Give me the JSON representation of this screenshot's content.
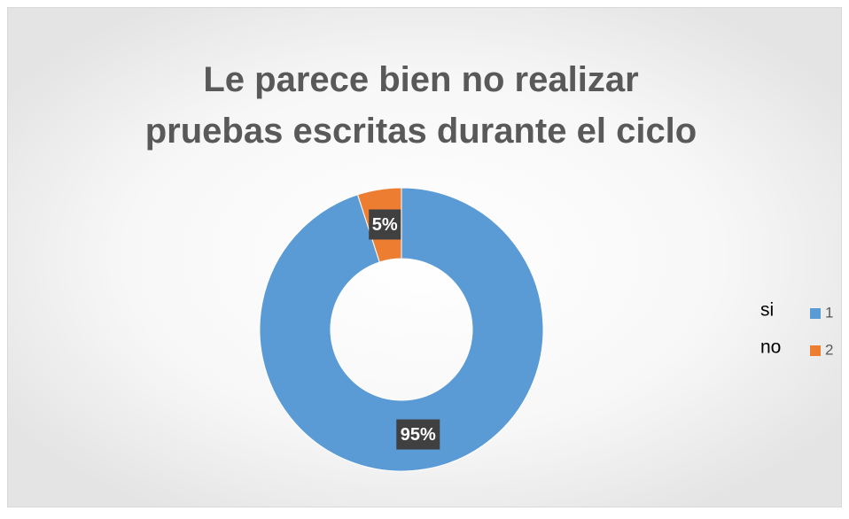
{
  "chart_data": {
    "type": "donut",
    "title": "Le parece bien no realizar pruebas escritas durante el ciclo",
    "categories": [
      "1",
      "2"
    ],
    "values": [
      95,
      5
    ],
    "value_labels": [
      "95%",
      "5%"
    ],
    "colors": [
      "#5b9bd5",
      "#ed7d31"
    ],
    "legend_text": [
      "si",
      "no"
    ],
    "legend": "right"
  }
}
